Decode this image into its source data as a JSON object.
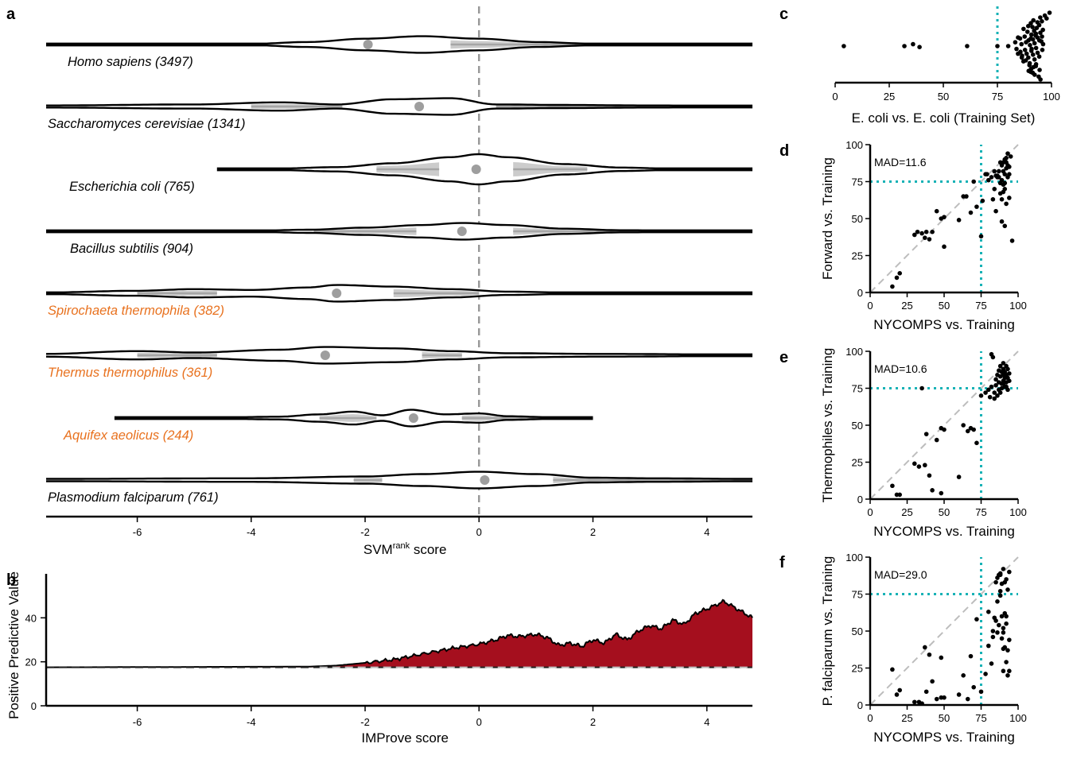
{
  "panel_letters": {
    "a": "a",
    "b": "b",
    "c": "c",
    "d": "d",
    "e": "e",
    "f": "f"
  },
  "colors": {
    "black_label": "#000000",
    "thermophile_label": "#e8711e",
    "violin_stroke": "#000000",
    "median_dot": "#9e9e9e",
    "iqr_fill": "#cccccc",
    "ppv_fill": "#a50f1e",
    "teal": "#17b2b6",
    "gray_dash": "#9a9a9a"
  },
  "chart_data": [
    {
      "id": "a",
      "type": "violin",
      "xlabel": "SVM",
      "xlabel_sup": "rank",
      "xlabel_tail": " score",
      "xlim": [
        -7.6,
        4.8
      ],
      "xticks": [
        -6,
        -4,
        -2,
        0,
        2,
        4
      ],
      "reference_line_x": 0,
      "series": [
        {
          "label": "Homo sapiens (3497)",
          "color": "thermo_false",
          "range": [
            -7.6,
            4.8
          ],
          "median": -1.95,
          "iqr": [
            -7.6,
            -4.5
          ],
          "iqr2": [
            -0.5,
            4.8
          ],
          "profile": [
            [
              -7.6,
              0.5
            ],
            [
              -4,
              0.8
            ],
            [
              -3,
              3
            ],
            [
              -2,
              7
            ],
            [
              -1,
              10
            ],
            [
              0,
              7
            ],
            [
              1,
              3
            ],
            [
              2,
              1
            ],
            [
              4.8,
              0.5
            ]
          ]
        },
        {
          "label": "Saccharomyces cerevisiae (1341)",
          "color": "thermo_false",
          "range": [
            -7.6,
            4.8
          ],
          "median": -1.05,
          "iqr": [
            -4,
            -2.4
          ],
          "iqr2": [
            0.3,
            4.8
          ],
          "profile": [
            [
              -7.6,
              1
            ],
            [
              -5,
              2
            ],
            [
              -3.5,
              4
            ],
            [
              -2.5,
              2
            ],
            [
              -1.5,
              7
            ],
            [
              -0.5,
              8
            ],
            [
              0.3,
              2
            ],
            [
              1.5,
              1.5
            ],
            [
              3,
              1
            ],
            [
              4.8,
              0.5
            ]
          ]
        },
        {
          "label": "Escherichia coli (765)",
          "color": "thermo_false",
          "range": [
            -4.6,
            4.8
          ],
          "median": -0.05,
          "iqr": [
            -1.8,
            -0.7
          ],
          "iqr2": [
            0.6,
            1.9
          ],
          "profile": [
            [
              -4.6,
              1
            ],
            [
              -3.5,
              2
            ],
            [
              -2.5,
              5
            ],
            [
              -1.5,
              14
            ],
            [
              -0.5,
              28
            ],
            [
              0,
              35
            ],
            [
              0.5,
              28
            ],
            [
              1.5,
              12
            ],
            [
              2.5,
              4
            ],
            [
              3.5,
              1
            ],
            [
              4.8,
              0.5
            ]
          ]
        },
        {
          "label": "Bacillus subtilis (904)",
          "color": "thermo_false",
          "range": [
            -7.6,
            4.8
          ],
          "median": -0.3,
          "iqr": [
            -2.9,
            -1.1
          ],
          "iqr2": [
            0.6,
            4.8
          ],
          "profile": [
            [
              -7.6,
              0.5
            ],
            [
              -4,
              1
            ],
            [
              -3,
              3
            ],
            [
              -2,
              7
            ],
            [
              -1,
              12
            ],
            [
              -0.3,
              16
            ],
            [
              0.5,
              12
            ],
            [
              1.5,
              5
            ],
            [
              2.5,
              2
            ],
            [
              4.8,
              0.5
            ]
          ]
        },
        {
          "label": "Spirochaeta thermophila (382)",
          "color": "thermo_true",
          "range": [
            -7.6,
            4.8
          ],
          "median": -2.5,
          "iqr": [
            -6,
            -4.6
          ],
          "iqr2": [
            -1.5,
            0
          ],
          "profile": [
            [
              -7.6,
              1
            ],
            [
              -6,
              3
            ],
            [
              -5,
              5
            ],
            [
              -4,
              4
            ],
            [
              -3,
              7
            ],
            [
              -2.5,
              10
            ],
            [
              -1.5,
              8
            ],
            [
              -0.5,
              5
            ],
            [
              0.5,
              2
            ],
            [
              1.5,
              1
            ],
            [
              4.8,
              0.5
            ]
          ]
        },
        {
          "label": "Thermus thermophilus (361)",
          "color": "thermo_true",
          "range": [
            -7.6,
            4.8
          ],
          "median": -2.7,
          "iqr": [
            -6,
            -4.6
          ],
          "iqr2": [
            -1,
            -0.3
          ],
          "profile": [
            [
              -7.6,
              1
            ],
            [
              -6,
              3
            ],
            [
              -5,
              2
            ],
            [
              -3.5,
              4
            ],
            [
              -2.7,
              6
            ],
            [
              -1.5,
              5
            ],
            [
              -0.5,
              3
            ],
            [
              0.5,
              1.5
            ],
            [
              2,
              1
            ],
            [
              4.8,
              0.5
            ]
          ]
        },
        {
          "label": "Aquifex aeolicus (244)",
          "color": "thermo_true",
          "range": [
            -6.4,
            2
          ],
          "median": -1.15,
          "iqr": [
            -2.8,
            -1.8
          ],
          "iqr2": [
            -0.3,
            1.2
          ],
          "profile": [
            [
              -6.4,
              0.5
            ],
            [
              -4.5,
              1.5
            ],
            [
              -3.5,
              3
            ],
            [
              -2.8,
              8
            ],
            [
              -2.2,
              14
            ],
            [
              -1.7,
              6
            ],
            [
              -1.2,
              18
            ],
            [
              -0.6,
              8
            ],
            [
              0,
              10
            ],
            [
              0.5,
              4
            ],
            [
              1.2,
              2
            ],
            [
              2,
              0.5
            ]
          ]
        },
        {
          "label": "Plasmodium falciparum (761)",
          "color": "thermo_false",
          "range": [
            -7.6,
            4.8
          ],
          "median": 0.1,
          "iqr": [
            -2.2,
            -1.7
          ],
          "iqr2": [
            1.3,
            4.8
          ],
          "profile": [
            [
              -7.6,
              1
            ],
            [
              -4,
              1.5
            ],
            [
              -2,
              3
            ],
            [
              -1,
              5
            ],
            [
              0,
              7
            ],
            [
              1,
              5
            ],
            [
              2,
              2
            ],
            [
              3,
              1.5
            ],
            [
              4.8,
              1
            ]
          ]
        }
      ]
    },
    {
      "id": "b",
      "type": "area",
      "xlabel": "IMProve score",
      "ylabel": "Positive Predictive Value",
      "xlim": [
        -7.6,
        4.8
      ],
      "ylim": [
        0,
        60
      ],
      "xticks": [
        -6,
        -4,
        -2,
        0,
        2,
        4
      ],
      "yticks": [
        0,
        20,
        40
      ],
      "baseline": 17.5,
      "x": [
        -7.6,
        -3,
        -2.5,
        -2,
        -1.5,
        -1,
        -0.5,
        0,
        0.3,
        0.5,
        0.7,
        1,
        1.2,
        1.4,
        1.6,
        1.8,
        2,
        2.2,
        2.4,
        2.6,
        2.8,
        3,
        3.2,
        3.4,
        3.6,
        3.8,
        4,
        4.3,
        4.6,
        4.8
      ],
      "values": [
        17.5,
        17.8,
        18.3,
        19.5,
        21,
        23.5,
        26,
        28,
        30,
        32,
        31.5,
        32.5,
        31,
        27.5,
        28.5,
        27,
        30,
        28.5,
        32.5,
        30,
        34,
        36.5,
        35,
        39,
        37,
        42,
        44,
        47.5,
        43,
        40
      ]
    },
    {
      "id": "c",
      "type": "scatter",
      "xlabel": "E. coli vs. E. coli (Training Set)",
      "xlim": [
        0,
        100
      ],
      "xticks": [
        0,
        25,
        50,
        75,
        100
      ],
      "threshold": 75,
      "points_x": [
        4,
        32,
        36,
        39,
        61,
        75,
        80,
        83,
        84,
        85,
        86,
        86,
        87,
        87,
        88,
        88,
        88,
        89,
        89,
        89,
        90,
        90,
        90,
        90,
        91,
        91,
        91,
        91,
        91,
        92,
        92,
        92,
        92,
        92,
        92,
        93,
        93,
        93,
        93,
        93,
        93,
        94,
        94,
        94,
        94,
        94,
        95,
        95,
        95,
        95,
        96,
        96,
        96,
        96,
        97,
        97,
        86,
        88,
        90,
        92,
        94,
        91,
        89,
        93,
        95,
        87,
        90,
        92,
        94,
        96,
        84,
        85,
        88,
        91
      ],
      "points_jitter": [
        0,
        0,
        0.2,
        -0.1,
        0,
        0,
        0,
        0.4,
        -0.3,
        0.8,
        -0.6,
        0.2,
        1,
        -1,
        0.4,
        -0.4,
        1.5,
        -1.5,
        0.6,
        -0.8,
        1.2,
        -1.2,
        0.1,
        2,
        -2,
        0.7,
        1.6,
        -0.5,
        -1.8,
        2.5,
        1.1,
        -2.4,
        0.3,
        -0.9,
        1.9,
        -2.8,
        2.2,
        -0.2,
        0.9,
        -1.4,
        3,
        1.4,
        -3,
        -0.7,
        2.6,
        -2.1,
        0.5,
        3.2,
        -1.1,
        1.7,
        -3.2,
        0.2,
        2.9,
        -2.5,
        3.5,
        -3.5,
        1.8,
        -1.6,
        2.7,
        -2.7,
        0.6,
        -0.3,
        2.4,
        -2.2,
        1,
        -1.2,
        0.8,
        1.3,
        -1.9,
        -0.4,
        0.9,
        -0.8,
        2.1,
        -2.6
      ]
    },
    {
      "id": "d",
      "type": "scatter",
      "annotation": "MAD=11.6",
      "xlabel": "NYCOMPS vs. Training",
      "ylabel": "Forward vs. Training",
      "xlim": [
        0,
        100
      ],
      "ylim": [
        0,
        100
      ],
      "xticks": [
        0,
        25,
        50,
        75,
        100
      ],
      "yticks": [
        0,
        25,
        50,
        75,
        100
      ],
      "threshold": 75,
      "x": [
        15,
        18,
        20,
        30,
        32,
        35,
        37,
        38,
        40,
        42,
        45,
        48,
        50,
        50,
        60,
        63,
        65,
        68,
        70,
        72,
        75,
        78,
        80,
        82,
        83,
        84,
        85,
        86,
        86,
        87,
        87,
        88,
        88,
        88,
        89,
        89,
        89,
        90,
        90,
        90,
        90,
        91,
        91,
        91,
        91,
        92,
        92,
        92,
        93,
        93,
        93,
        94,
        94,
        95,
        96,
        76,
        79,
        84,
        85,
        89,
        91,
        92,
        94
      ],
      "y": [
        4,
        10,
        13,
        39,
        41,
        40,
        37,
        41,
        36,
        41,
        55,
        50,
        51,
        31,
        49,
        65,
        65,
        54,
        75,
        58,
        38,
        80,
        76,
        78,
        63,
        82,
        79,
        78,
        79,
        82,
        78,
        67,
        88,
        74,
        86,
        63,
        76,
        73,
        88,
        82,
        68,
        90,
        80,
        70,
        74,
        91,
        84,
        60,
        94,
        86,
        78,
        64,
        80,
        92,
        35,
        62,
        80,
        70,
        55,
        48,
        45,
        88,
        85
      ]
    },
    {
      "id": "e",
      "type": "scatter",
      "annotation": "MAD=10.6",
      "xlabel": "NYCOMPS vs. Training",
      "ylabel": "Thermophiles vs. Training",
      "xlim": [
        0,
        100
      ],
      "ylim": [
        0,
        100
      ],
      "xticks": [
        0,
        25,
        50,
        75,
        100
      ],
      "yticks": [
        0,
        25,
        50,
        75,
        100
      ],
      "threshold": 75,
      "x": [
        15,
        18,
        20,
        30,
        33,
        35,
        37,
        38,
        40,
        42,
        45,
        48,
        48,
        50,
        60,
        63,
        66,
        68,
        70,
        72,
        75,
        78,
        80,
        82,
        82,
        83,
        84,
        85,
        85,
        86,
        86,
        87,
        87,
        88,
        88,
        88,
        89,
        89,
        89,
        90,
        90,
        90,
        90,
        91,
        91,
        91,
        92,
        92,
        92,
        93,
        93,
        93,
        94,
        94,
        81,
        84,
        87,
        90,
        92
      ],
      "y": [
        9,
        3,
        3,
        24,
        22,
        75,
        23,
        44,
        16,
        6,
        40,
        48,
        4,
        47,
        15,
        50,
        46,
        48,
        47,
        38,
        70,
        72,
        74,
        98,
        76,
        96,
        68,
        77,
        81,
        70,
        84,
        79,
        87,
        72,
        90,
        83,
        78,
        86,
        75,
        80,
        84,
        88,
        92,
        76,
        82,
        86,
        79,
        84,
        90,
        74,
        82,
        88,
        80,
        85,
        69,
        72,
        74,
        78,
        76
      ]
    },
    {
      "id": "f",
      "type": "scatter",
      "annotation": "MAD=29.0",
      "xlabel": "NYCOMPS vs. Training",
      "ylabel": "P. falciparum vs. Training",
      "xlim": [
        0,
        100
      ],
      "ylim": [
        0,
        100
      ],
      "xticks": [
        0,
        25,
        50,
        75,
        100
      ],
      "yticks": [
        0,
        25,
        50,
        75,
        100
      ],
      "threshold": 75,
      "x": [
        15,
        18,
        20,
        30,
        33,
        35,
        37,
        38,
        40,
        42,
        45,
        48,
        48,
        50,
        60,
        63,
        66,
        68,
        70,
        72,
        75,
        78,
        80,
        82,
        83,
        84,
        85,
        85,
        86,
        86,
        87,
        87,
        88,
        88,
        88,
        89,
        89,
        89,
        90,
        90,
        90,
        90,
        91,
        91,
        91,
        92,
        92,
        92,
        93,
        93,
        93,
        94,
        94,
        80,
        83,
        86,
        88,
        90,
        92,
        94
      ],
      "y": [
        24,
        7,
        10,
        2,
        2,
        1,
        39,
        9,
        34,
        16,
        4,
        5,
        32,
        5,
        7,
        20,
        4,
        33,
        12,
        58,
        9,
        21,
        63,
        28,
        46,
        59,
        57,
        83,
        86,
        49,
        88,
        54,
        77,
        74,
        89,
        60,
        82,
        45,
        92,
        49,
        38,
        23,
        62,
        39,
        83,
        55,
        85,
        29,
        78,
        20,
        37,
        90,
        23,
        40,
        50,
        70,
        88,
        52,
        60,
        44
      ]
    }
  ]
}
